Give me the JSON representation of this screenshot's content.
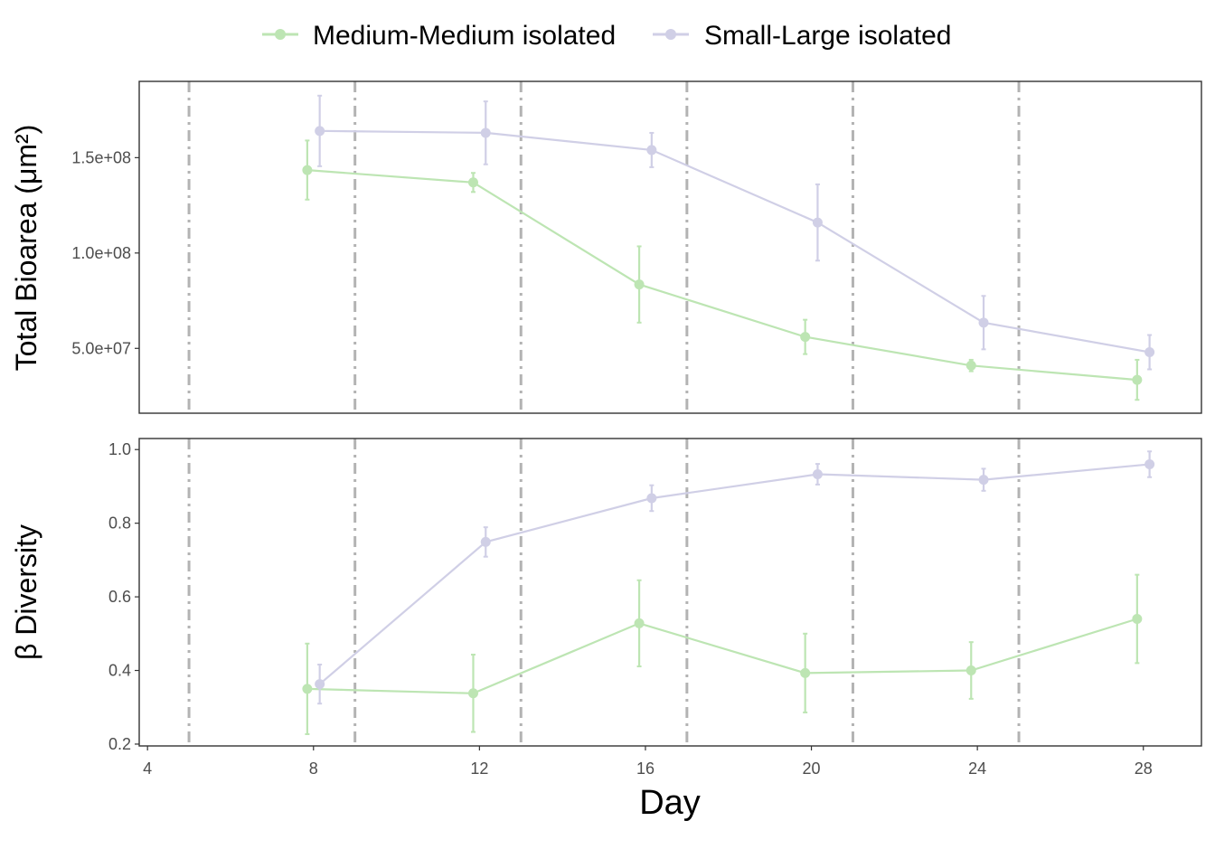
{
  "chart_data": [
    {
      "type": "line",
      "panel": "top",
      "ylabel": "Total Bioarea (μm²)",
      "xlabel": "",
      "xlim": [
        3.8,
        29.4
      ],
      "ylim": [
        16000000.0,
        190000000.0
      ],
      "yticks": [
        50000000.0,
        100000000.0,
        150000000.0
      ],
      "ytick_labels": [
        "5.0e+07",
        "1.0e+08",
        "1.5e+08"
      ],
      "vlines": [
        5,
        9,
        13,
        17,
        21,
        25
      ],
      "grid": false,
      "series": [
        {
          "name": "Medium-Medium isolated",
          "color": "#bde5b3",
          "x": [
            7.85,
            11.85,
            15.85,
            19.85,
            23.85,
            27.85
          ],
          "y": [
            143500000.0,
            137000000.0,
            83500000.0,
            56000000.0,
            41000000.0,
            33500000.0
          ],
          "err": [
            15500000.0,
            5000000.0,
            20000000.0,
            9000000.0,
            3000000.0,
            10500000.0
          ]
        },
        {
          "name": "Small-Large isolated",
          "color": "#d0cfe6",
          "x": [
            8.15,
            12.15,
            16.15,
            20.15,
            24.15,
            28.15
          ],
          "y": [
            164000000.0,
            163000000.0,
            154000000.0,
            116000000.0,
            63500000.0,
            48000000.0
          ],
          "err": [
            18500000.0,
            16500000.0,
            9000000.0,
            20000000.0,
            14000000.0,
            9000000.0
          ]
        }
      ]
    },
    {
      "type": "line",
      "panel": "bottom",
      "ylabel": "β Diversity",
      "xlabel": "Day",
      "xlim": [
        3.8,
        29.4
      ],
      "ylim": [
        0.195,
        1.03
      ],
      "xticks": [
        4,
        8,
        12,
        16,
        20,
        24,
        28
      ],
      "xtick_labels": [
        "4",
        "8",
        "12",
        "16",
        "20",
        "24",
        "28"
      ],
      "yticks": [
        0.2,
        0.4,
        0.6,
        0.8,
        1.0
      ],
      "ytick_labels": [
        "0.2",
        "0.4",
        "0.6",
        "0.8",
        "1.0"
      ],
      "vlines": [
        5,
        9,
        13,
        17,
        21,
        25
      ],
      "grid": false,
      "series": [
        {
          "name": "Medium-Medium isolated",
          "color": "#bde5b3",
          "x": [
            7.85,
            11.85,
            15.85,
            19.85,
            23.85,
            27.85
          ],
          "y": [
            0.35,
            0.338,
            0.528,
            0.393,
            0.4,
            0.54
          ],
          "err": [
            0.123,
            0.105,
            0.117,
            0.107,
            0.077,
            0.12
          ]
        },
        {
          "name": "Small-Large isolated",
          "color": "#d0cfe6",
          "x": [
            8.15,
            12.15,
            16.15,
            20.15,
            24.15,
            28.15
          ],
          "y": [
            0.363,
            0.749,
            0.868,
            0.933,
            0.918,
            0.96
          ],
          "err": [
            0.053,
            0.04,
            0.035,
            0.028,
            0.03,
            0.035
          ]
        }
      ]
    }
  ],
  "legend": {
    "placement": "top",
    "items": [
      {
        "label": "Medium-Medium isolated",
        "color": "#bde5b3"
      },
      {
        "label": "Small-Large isolated",
        "color": "#d0cfe6"
      }
    ]
  },
  "colors": {
    "panel_border": "#333333",
    "tick_text": "#4d4d4d",
    "vline": "#b3b3b3"
  }
}
